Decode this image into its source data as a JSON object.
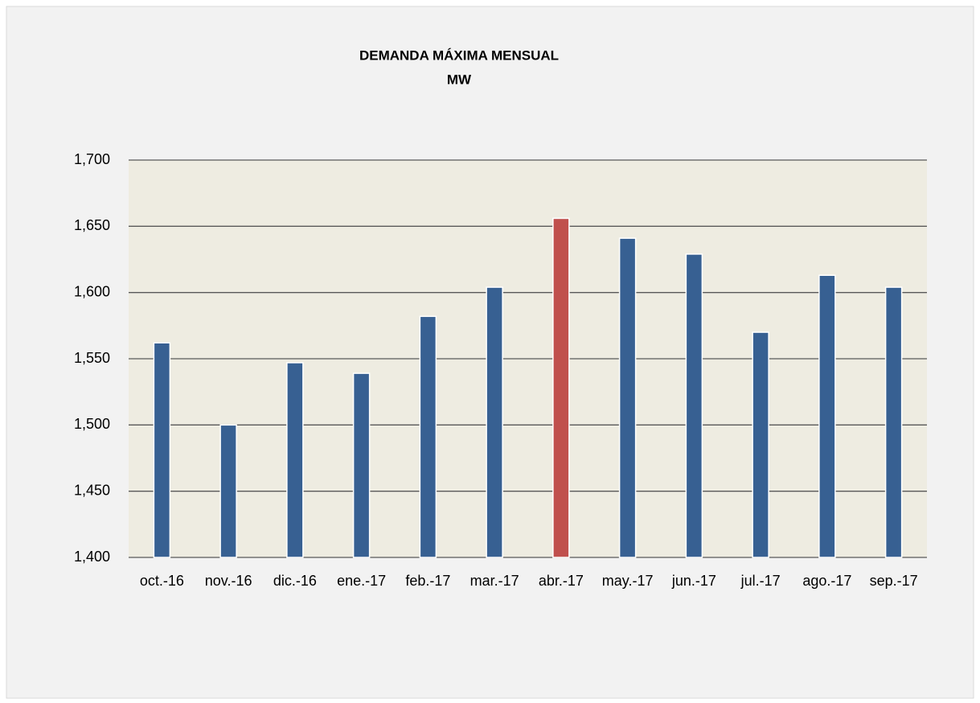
{
  "chart_data": {
    "type": "bar",
    "title": "DEMANDA  MÁXIMA  MENSUAL",
    "subtitle": "MW",
    "categories": [
      "oct.-16",
      "nov.-16",
      "dic.-16",
      "ene.-17",
      "feb.-17",
      "mar.-17",
      "abr.-17",
      "may.-17",
      "jun.-17",
      "jul.-17",
      "ago.-17",
      "sep.-17"
    ],
    "values": [
      1562,
      1500,
      1547,
      1539,
      1582,
      1604,
      1656,
      1641,
      1629,
      1570,
      1613,
      1604
    ],
    "colors": [
      "#376092",
      "#376092",
      "#376092",
      "#376092",
      "#376092",
      "#376092",
      "#c0504d",
      "#376092",
      "#376092",
      "#376092",
      "#376092",
      "#376092"
    ],
    "ylim": [
      1400,
      1700
    ],
    "yticks": [
      {
        "value": 1400,
        "label": "1,400"
      },
      {
        "value": 1450,
        "label": "1,450"
      },
      {
        "value": 1500,
        "label": "1,500"
      },
      {
        "value": 1550,
        "label": "1,550"
      },
      {
        "value": 1600,
        "label": "1,600"
      },
      {
        "value": 1650,
        "label": "1,650"
      },
      {
        "value": 1700,
        "label": "1,700"
      }
    ],
    "grid": true
  }
}
